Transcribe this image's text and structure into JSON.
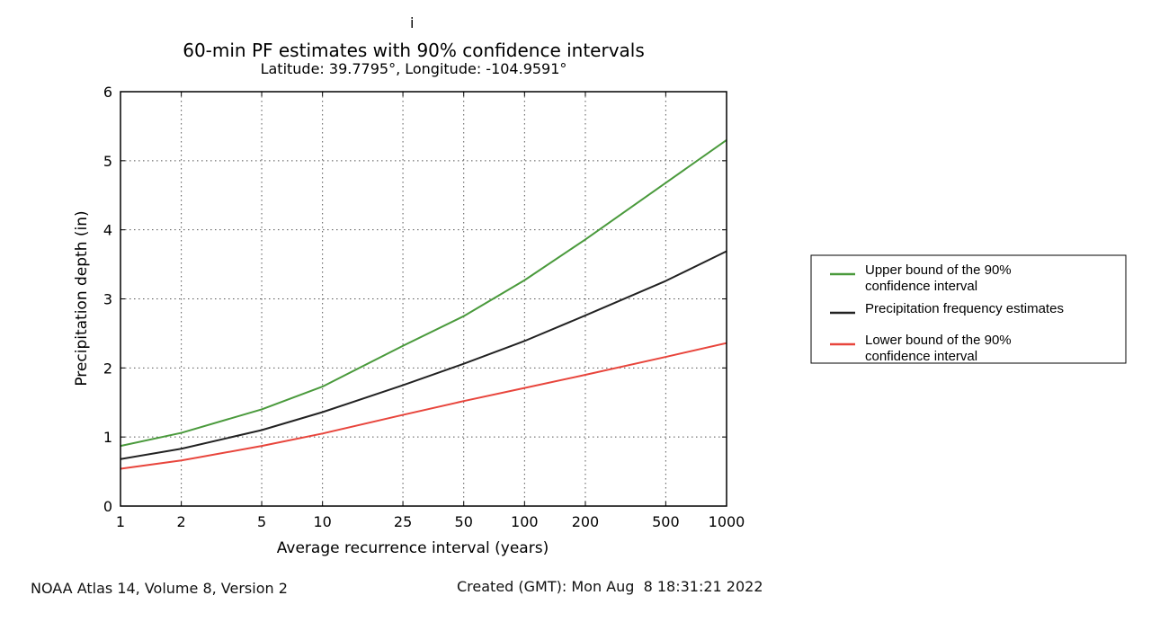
{
  "stray_mark": "i",
  "footer": {
    "source": "NOAA Atlas 14, Volume 8, Version 2",
    "created": "Created (GMT): Mon Aug  8 18:31:21 2022"
  },
  "colors": {
    "upper": "#4a9a3c",
    "estimate": "#222222",
    "lower": "#e8453c",
    "grid": "#555555",
    "axes": "#000000"
  },
  "chart_data": {
    "type": "line",
    "title": "60-min PF estimates with 90% confidence intervals",
    "subtitle": "Latitude: 39.7795°, Longitude: -104.9591°",
    "xlabel": "Average recurrence interval (years)",
    "ylabel": "Precipitation depth (in)",
    "x_scale": "log",
    "xlim": [
      1,
      1000
    ],
    "ylim": [
      0,
      6
    ],
    "grid": true,
    "x_ticks": [
      1,
      2,
      5,
      10,
      25,
      50,
      100,
      200,
      500,
      1000
    ],
    "x_tick_labels": [
      "1",
      "2",
      "5",
      "10",
      "25",
      "50",
      "100",
      "200",
      "500",
      "1000"
    ],
    "y_ticks": [
      0,
      1,
      2,
      3,
      4,
      5,
      6
    ],
    "y_tick_labels": [
      "0",
      "1",
      "2",
      "3",
      "4",
      "5",
      "6"
    ],
    "x": [
      1,
      2,
      5,
      10,
      25,
      50,
      100,
      200,
      500,
      1000
    ],
    "series": [
      {
        "name": "Upper bound of the 90% confidence interval",
        "legend_lines": [
          "Upper bound of the 90%",
          "confidence interval"
        ],
        "color": "#4a9a3c",
        "values": [
          0.87,
          1.06,
          1.4,
          1.73,
          2.32,
          2.75,
          3.27,
          3.86,
          4.68,
          5.3
        ]
      },
      {
        "name": "Precipitation frequency estimates",
        "legend_lines": [
          "Precipitation frequency estimates"
        ],
        "color": "#222222",
        "values": [
          0.68,
          0.83,
          1.1,
          1.36,
          1.75,
          2.06,
          2.39,
          2.76,
          3.26,
          3.69
        ]
      },
      {
        "name": "Lower bound of the 90% confidence interval",
        "legend_lines": [
          "Lower bound of the 90%",
          "confidence interval"
        ],
        "color": "#e8453c",
        "values": [
          0.54,
          0.66,
          0.87,
          1.05,
          1.32,
          1.52,
          1.71,
          1.9,
          2.16,
          2.36
        ]
      }
    ],
    "legend_position": "right"
  }
}
